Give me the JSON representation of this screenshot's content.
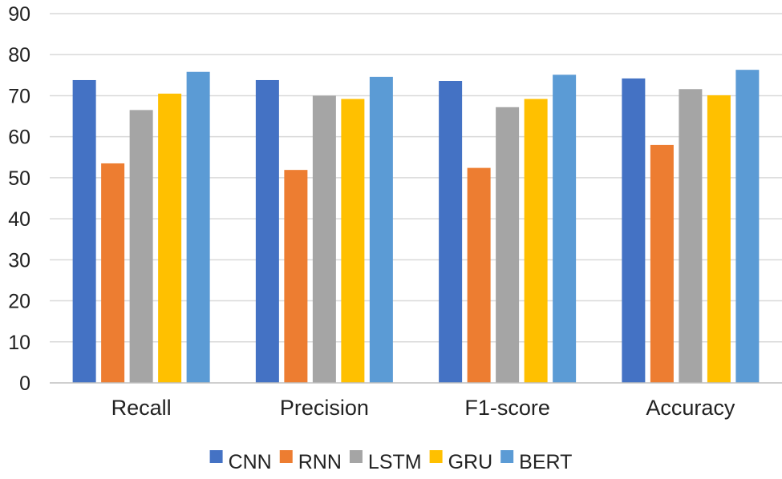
{
  "chart_data": {
    "type": "bar",
    "title": "",
    "xlabel": "",
    "ylabel": "",
    "ylim": [
      0,
      90
    ],
    "yticks": [
      "0",
      "10",
      "20",
      "30",
      "40",
      "50",
      "60",
      "70",
      "80",
      "90"
    ],
    "grid": "horizontal",
    "legend_position": "bottom",
    "categories": [
      "Recall",
      "Precision",
      "F1-score",
      "Accuracy"
    ],
    "series": [
      {
        "name": "CNN",
        "color": "#4472C4",
        "values": [
          73.8,
          73.8,
          73.6,
          74.2
        ]
      },
      {
        "name": "RNN",
        "color": "#ED7D31",
        "values": [
          53.5,
          51.9,
          52.4,
          58.0
        ]
      },
      {
        "name": "LSTM",
        "color": "#A5A5A5",
        "values": [
          66.5,
          70.0,
          67.2,
          71.6
        ]
      },
      {
        "name": "GRU",
        "color": "#FFC000",
        "values": [
          70.5,
          69.2,
          69.2,
          70.1
        ]
      },
      {
        "name": "BERT",
        "color": "#5B9BD5",
        "values": [
          75.8,
          74.6,
          75.1,
          76.3
        ]
      }
    ]
  }
}
